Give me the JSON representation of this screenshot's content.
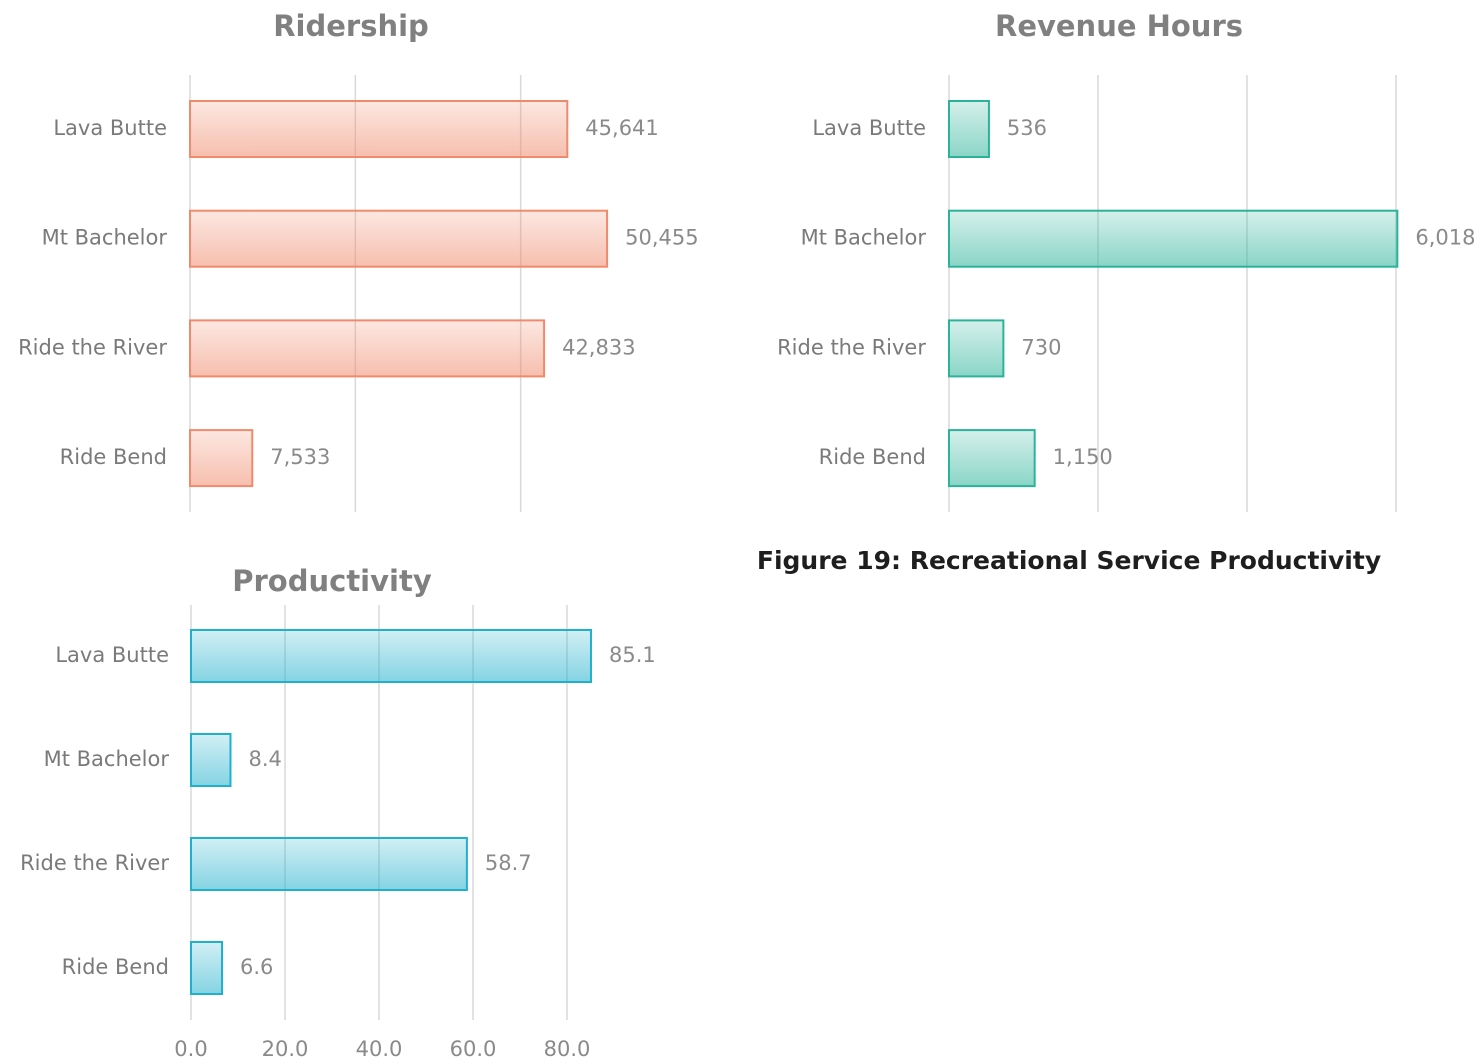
{
  "caption": "Figure 19: Recreational Service Productivity",
  "chart_data": [
    {
      "type": "hbar",
      "title": "Ridership",
      "categories": [
        "Lava Butte",
        "Mt Bachelor",
        "Ride the River",
        "Ride Bend"
      ],
      "values": [
        45641,
        50455,
        42833,
        7533
      ],
      "value_labels": [
        "45,641",
        "50,455",
        "42,833",
        "7,533"
      ],
      "color": "#f08a6c",
      "xlim": [
        0,
        60000
      ],
      "xticks": [
        0,
        20000,
        40000
      ],
      "grid": true,
      "show_tick_labels": false
    },
    {
      "type": "hbar",
      "title": "Revenue Hours",
      "categories": [
        "Lava Butte",
        "Mt Bachelor",
        "Ride the River",
        "Ride Bend"
      ],
      "values": [
        536,
        6018,
        730,
        1150
      ],
      "value_labels": [
        "536",
        "6,018",
        "730",
        "1,150"
      ],
      "color": "#2bb39a",
      "xlim": [
        0,
        6000
      ],
      "xticks": [
        0,
        2000,
        4000,
        6000
      ],
      "grid": true,
      "show_tick_labels": false
    },
    {
      "type": "hbar",
      "title": "Productivity",
      "categories": [
        "Lava Butte",
        "Mt Bachelor",
        "Ride the River",
        "Ride Bend"
      ],
      "values": [
        85.1,
        8.4,
        58.7,
        6.6
      ],
      "color": "#1fb0cc",
      "xlim": [
        0,
        80
      ],
      "xticks": [
        {
          "value": 0,
          "label": "0.0"
        },
        {
          "value": 20,
          "label": "20.0"
        },
        {
          "value": 40,
          "label": "40.0"
        },
        {
          "value": 60,
          "label": "60.0"
        },
        {
          "value": 80,
          "label": "80.0"
        }
      ],
      "grid": true,
      "show_tick_labels": true
    }
  ]
}
